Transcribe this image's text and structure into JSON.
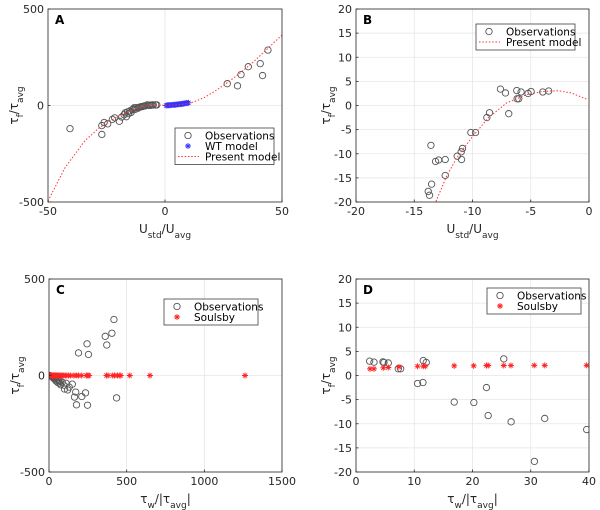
{
  "chart_data": [
    {
      "panel": "A",
      "type": "scatter",
      "title": "",
      "xlabel": {
        "main": "U",
        "sub1": "std",
        "mid": "/U",
        "sub2": "avg"
      },
      "ylabel": {
        "main": "τ",
        "sub1": "f",
        "mid": "/τ",
        "sub2": "avg"
      },
      "xlim": [
        -50,
        50
      ],
      "ylim": [
        -500,
        500
      ],
      "xticks": [
        -50,
        0,
        50
      ],
      "yticks": [
        -500,
        0,
        500
      ],
      "grid": true,
      "legend_position": "lower-right",
      "series": [
        {
          "name": "Observations",
          "marker": "circle",
          "color": "#555555",
          "points": [
            [
              -40.6,
              -120
            ],
            [
              -27,
              -150
            ],
            [
              -27,
              -104
            ],
            [
              -26,
              -88
            ],
            [
              -24.5,
              -95
            ],
            [
              -22.5,
              -72
            ],
            [
              -21.5,
              -64
            ],
            [
              -19.5,
              -82
            ],
            [
              -18.5,
              -60
            ],
            [
              -17.5,
              -48
            ],
            [
              -17,
              -38
            ],
            [
              -16.5,
              -58
            ],
            [
              -16,
              -33
            ],
            [
              -15.5,
              -42
            ],
            [
              -15,
              -28
            ],
            [
              -14.5,
              -36
            ],
            [
              -14,
              -22
            ],
            [
              -13.6,
              -18
            ],
            [
              -13.2,
              -12
            ],
            [
              -12.8,
              -20
            ],
            [
              -12.3,
              -11
            ],
            [
              -11.5,
              -14
            ],
            [
              -11,
              -9
            ],
            [
              -10.5,
              -7
            ],
            [
              -10,
              -6
            ],
            [
              -9.5,
              -5
            ],
            [
              -9,
              -3
            ],
            [
              -8.5,
              -2
            ],
            [
              -7.6,
              3
            ],
            [
              -7,
              1
            ],
            [
              -6.5,
              2
            ],
            [
              -6,
              1
            ],
            [
              -5.5,
              3
            ],
            [
              -5,
              3
            ],
            [
              -4,
              3
            ],
            [
              -3.5,
              3
            ],
            [
              26.6,
              113
            ],
            [
              31.0,
              102
            ],
            [
              32.5,
              160
            ],
            [
              35.6,
              201
            ],
            [
              40.7,
              217
            ],
            [
              41.7,
              155
            ],
            [
              44,
              287
            ]
          ]
        },
        {
          "name": "WT model",
          "marker": "star",
          "color": "#3333ff",
          "points": [
            [
              0.5,
              0
            ],
            [
              1,
              1
            ],
            [
              1.5,
              1
            ],
            [
              2,
              2
            ],
            [
              2.5,
              2
            ],
            [
              3,
              3
            ],
            [
              3.5,
              3
            ],
            [
              4,
              4
            ],
            [
              4.5,
              4
            ],
            [
              5,
              5
            ],
            [
              5.5,
              6
            ],
            [
              6,
              7
            ],
            [
              6.5,
              7
            ],
            [
              7,
              8
            ],
            [
              7.5,
              9
            ],
            [
              8,
              10
            ],
            [
              8.5,
              11
            ],
            [
              9,
              12
            ],
            [
              9.5,
              13
            ],
            [
              10,
              14
            ]
          ]
        },
        {
          "name": "Present model",
          "marker": "dotted-line",
          "color": "#ff3333",
          "points": [
            [
              -50,
              -495
            ],
            [
              -42.7,
              -321
            ],
            [
              -34.2,
              -182
            ],
            [
              -27.8,
              -113
            ],
            [
              -20,
              -55
            ],
            [
              -13.1,
              -20
            ],
            [
              -10,
              -6.7
            ],
            [
              -7,
              0.5
            ],
            [
              -5.4,
              2.2
            ],
            [
              -3,
              3.1
            ],
            [
              0,
              1.1
            ],
            [
              5,
              3
            ],
            [
              10,
              10
            ],
            [
              12.8,
              21
            ],
            [
              17.1,
              43
            ],
            [
              22,
              80
            ],
            [
              27,
              121
            ],
            [
              32,
              168
            ],
            [
              37,
              217
            ],
            [
              43,
              285
            ],
            [
              49.9,
              364
            ]
          ]
        }
      ]
    },
    {
      "panel": "B",
      "type": "scatter",
      "title": "",
      "xlabel": {
        "main": "U",
        "sub1": "std",
        "mid": "/U",
        "sub2": "avg"
      },
      "ylabel": {
        "main": "τ",
        "sub1": "f",
        "mid": "/τ",
        "sub2": "avg"
      },
      "xlim": [
        -20,
        0
      ],
      "ylim": [
        -20,
        20
      ],
      "xticks": [
        -20,
        -15,
        -10,
        -5,
        0
      ],
      "yticks": [
        -20,
        -15,
        -10,
        -5,
        0,
        5,
        10,
        15,
        20
      ],
      "grid": true,
      "legend_position": "top-right",
      "series": [
        {
          "name": "Observations",
          "marker": "circle",
          "color": "#555555",
          "points": [
            [
              -13.57,
              -8.26
            ],
            [
              -13.51,
              -16.3
            ],
            [
              -13.8,
              -17.8
            ],
            [
              -13.69,
              -18.6
            ],
            [
              -13.17,
              -11.6
            ],
            [
              -12.91,
              -11.3
            ],
            [
              -12.34,
              -11.2
            ],
            [
              -12.34,
              -14.5
            ],
            [
              -11.31,
              -10.5
            ],
            [
              -10.97,
              -9.6
            ],
            [
              -10.86,
              -8.9
            ],
            [
              -10.94,
              -11.2
            ],
            [
              -10.14,
              -5.6
            ],
            [
              -9.74,
              -5.6
            ],
            [
              -8.77,
              -2.5
            ],
            [
              -8.54,
              -1.5
            ],
            [
              -7.6,
              3.4
            ],
            [
              -7.17,
              2.6
            ],
            [
              -6.89,
              -1.7
            ],
            [
              -6.2,
              3.1
            ],
            [
              -6.17,
              1.4
            ],
            [
              -6.03,
              1.4
            ],
            [
              -5.83,
              2.8
            ],
            [
              -5.23,
              2.5
            ],
            [
              -4.97,
              2.9
            ],
            [
              -3.97,
              2.8
            ],
            [
              -3.46,
              3.0
            ]
          ]
        },
        {
          "name": "Present model",
          "marker": "dotted-line",
          "color": "#ff3333",
          "points": [
            [
              -13.14,
              -19.9
            ],
            [
              -12.23,
              -14.7
            ],
            [
              -11.37,
              -10.9
            ],
            [
              -10.08,
              -6.7
            ],
            [
              -8.66,
              -2.6
            ],
            [
              -7.09,
              0.5
            ],
            [
              -6,
              1.6
            ],
            [
              -5.37,
              2.24
            ],
            [
              -4,
              2.9
            ],
            [
              -2.66,
              3.07
            ],
            [
              -1.5,
              2.6
            ],
            [
              -0.09,
              1.2
            ]
          ]
        }
      ]
    },
    {
      "panel": "C",
      "type": "scatter",
      "title": "",
      "xlabel": {
        "main": "τ",
        "sub1": "w",
        "mid": "/|τ",
        "sub2": "avg",
        "tail": "|"
      },
      "ylabel": {
        "main": "τ",
        "sub1": "f",
        "mid": "/τ",
        "sub2": "avg"
      },
      "xlim": [
        0,
        1500
      ],
      "ylim": [
        -500,
        500
      ],
      "xticks": [
        0,
        500,
        1000,
        1500
      ],
      "yticks": [
        -500,
        0,
        500
      ],
      "grid": true,
      "legend_position": "top-right",
      "series": [
        {
          "name": "Observations",
          "marker": "circle",
          "color": "#555555",
          "points": [
            [
              418,
              290
            ],
            [
              405,
              219
            ],
            [
              362,
              203
            ],
            [
              372,
              158
            ],
            [
              245,
              164
            ],
            [
              254,
              109
            ],
            [
              190,
              117
            ],
            [
              435,
              -116
            ],
            [
              248,
              -154
            ],
            [
              177,
              -152
            ],
            [
              235,
              -90
            ],
            [
              211,
              -109
            ],
            [
              164,
              -112
            ],
            [
              172,
              -86
            ],
            [
              150,
              -45
            ],
            [
              130,
              -60
            ],
            [
              120,
              -75
            ],
            [
              110,
              -40
            ],
            [
              100,
              -70
            ],
            [
              95,
              -50
            ],
            [
              85,
              -35
            ],
            [
              75,
              -48
            ],
            [
              70,
              -30
            ],
            [
              65,
              -40
            ],
            [
              60,
              -25
            ],
            [
              55,
              -35
            ],
            [
              50,
              -20
            ],
            [
              45,
              -28
            ],
            [
              40,
              -18
            ],
            [
              35,
              -12
            ],
            [
              30,
              -15
            ],
            [
              25,
              -8
            ],
            [
              20,
              -6
            ],
            [
              15,
              -4
            ],
            [
              10,
              -2
            ],
            [
              5,
              -1
            ],
            [
              2,
              0
            ]
          ]
        },
        {
          "name": "Soulsby",
          "marker": "star",
          "color": "#ff2222",
          "points": [
            [
              2,
              0
            ],
            [
              5,
              0
            ],
            [
              8,
              0
            ],
            [
              11,
              0
            ],
            [
              14,
              0
            ],
            [
              18,
              0
            ],
            [
              22,
              0
            ],
            [
              26,
              0
            ],
            [
              30,
              0
            ],
            [
              35,
              0
            ],
            [
              40,
              0
            ],
            [
              45,
              0
            ],
            [
              50,
              0
            ],
            [
              56,
              0
            ],
            [
              62,
              0
            ],
            [
              70,
              0
            ],
            [
              78,
              0
            ],
            [
              86,
              0
            ],
            [
              95,
              0
            ],
            [
              105,
              0
            ],
            [
              115,
              0
            ],
            [
              125,
              0
            ],
            [
              140,
              0
            ],
            [
              160,
              0
            ],
            [
              175,
              0
            ],
            [
              190,
              0
            ],
            [
              210,
              0
            ],
            [
              240,
              0
            ],
            [
              250,
              0
            ],
            [
              258,
              0
            ],
            [
              370,
              0
            ],
            [
              380,
              0
            ],
            [
              410,
              0
            ],
            [
              422,
              0
            ],
            [
              440,
              0
            ],
            [
              452,
              0
            ],
            [
              462,
              0
            ],
            [
              520,
              0
            ],
            [
              650,
              0
            ],
            [
              1262,
              0
            ]
          ]
        }
      ]
    },
    {
      "panel": "D",
      "type": "scatter",
      "title": "",
      "xlabel": {
        "main": "τ",
        "sub1": "w",
        "mid": "/|τ",
        "sub2": "avg",
        "tail": "|"
      },
      "ylabel": {
        "main": "τ",
        "sub1": "f",
        "mid": "/τ",
        "sub2": "avg"
      },
      "xlim": [
        0,
        40
      ],
      "ylim": [
        -20,
        20
      ],
      "xticks": [
        0,
        10,
        20,
        30,
        40
      ],
      "yticks": [
        -20,
        -15,
        -10,
        -5,
        0,
        5,
        10,
        15,
        20
      ],
      "grid": true,
      "legend_position": "top-right",
      "series": [
        {
          "name": "Observations",
          "marker": "circle",
          "color": "#555555",
          "points": [
            [
              2.34,
              2.97
            ],
            [
              3.09,
              2.76
            ],
            [
              4.63,
              2.83
            ],
            [
              4.8,
              2.7
            ],
            [
              5.54,
              2.6
            ],
            [
              7.26,
              1.4
            ],
            [
              7.66,
              1.4
            ],
            [
              10.57,
              -1.66
            ],
            [
              11.49,
              -1.45
            ],
            [
              11.54,
              3.1
            ],
            [
              12.06,
              2.7
            ],
            [
              16.86,
              -5.5
            ],
            [
              20.23,
              -5.6
            ],
            [
              22.4,
              -2.5
            ],
            [
              22.69,
              -8.3
            ],
            [
              25.37,
              3.45
            ],
            [
              26.63,
              -9.6
            ],
            [
              30.63,
              -17.8
            ],
            [
              32.4,
              -8.9
            ],
            [
              39.6,
              -11.2
            ]
          ]
        },
        {
          "name": "Soulsby",
          "marker": "star",
          "color": "#ff2222",
          "points": [
            [
              2.4,
              1.38
            ],
            [
              3.09,
              1.38
            ],
            [
              4.69,
              1.6
            ],
            [
              5.54,
              1.66
            ],
            [
              7.37,
              1.79
            ],
            [
              10.57,
              1.93
            ],
            [
              11.54,
              1.93
            ],
            [
              11.89,
              1.93
            ],
            [
              16.86,
              2.0
            ],
            [
              20.2,
              2.0
            ],
            [
              22.4,
              2.07
            ],
            [
              22.7,
              2.07
            ],
            [
              25.37,
              2.07
            ],
            [
              26.6,
              2.07
            ],
            [
              30.6,
              2.1
            ],
            [
              32.4,
              2.1
            ],
            [
              39.6,
              2.1
            ]
          ]
        }
      ]
    }
  ]
}
